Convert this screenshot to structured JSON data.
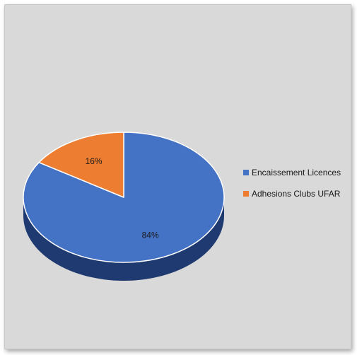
{
  "chart_data": {
    "type": "pie",
    "title": "",
    "three_d": true,
    "legend_position": "right",
    "series": [
      {
        "categories": [
          "Encaissement Licences",
          "Adhesions Clubs UFAR"
        ],
        "values": [
          84,
          16
        ],
        "labels": [
          "84%",
          "16%"
        ],
        "colors": [
          "#4472c4",
          "#ed7d31"
        ]
      }
    ]
  },
  "colors": {
    "background": "#d9d9d9",
    "blue_top": "#4472c4",
    "blue_side": "#1f3a70",
    "orange_top": "#ed7d31",
    "orange_side": "#a04d14"
  }
}
